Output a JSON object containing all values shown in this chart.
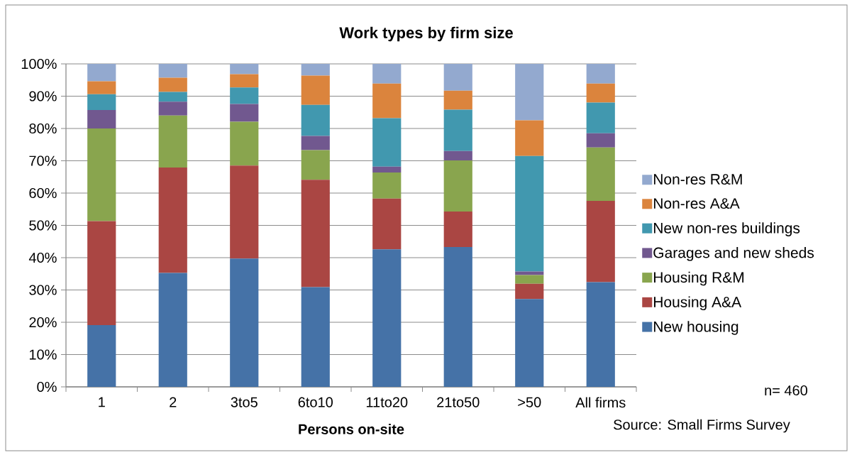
{
  "chart_data": {
    "type": "bar",
    "stacked": true,
    "title": "Work types by firm size",
    "xlabel": "Persons on-site",
    "categories": [
      "1",
      "2",
      "3to5",
      "6to10",
      "11to20",
      "21to50",
      ">50",
      "All firms"
    ],
    "series": [
      {
        "name": "New housing",
        "color": "#4572a7",
        "values": [
          19.1,
          35.3,
          39.7,
          30.9,
          42.6,
          43.3,
          27.2,
          32.4
        ]
      },
      {
        "name": "Housing A&A",
        "color": "#aa4643",
        "values": [
          32.2,
          32.6,
          28.8,
          33.2,
          15.7,
          11.0,
          4.7,
          25.2
        ]
      },
      {
        "name": "Housing R&M",
        "color": "#89a54e",
        "values": [
          28.7,
          16.1,
          13.6,
          9.2,
          8.1,
          15.8,
          2.7,
          16.5
        ]
      },
      {
        "name": "Garages and new sheds",
        "color": "#71588f",
        "values": [
          5.7,
          4.3,
          5.5,
          4.4,
          1.8,
          2.9,
          1.1,
          4.4
        ]
      },
      {
        "name": "New non-res buildings",
        "color": "#4198af",
        "values": [
          4.9,
          3.0,
          5.1,
          9.6,
          15.0,
          12.8,
          35.8,
          9.5
        ]
      },
      {
        "name": "Non-res A&A",
        "color": "#db843d",
        "values": [
          4.0,
          4.4,
          4.1,
          9.1,
          10.7,
          5.9,
          11.0,
          5.9
        ]
      },
      {
        "name": "Non-res R&M",
        "color": "#93a9cf",
        "values": [
          5.4,
          4.3,
          3.2,
          3.6,
          6.1,
          8.3,
          17.5,
          6.1
        ]
      }
    ],
    "ylim": [
      0,
      100
    ],
    "yticks": [
      {
        "value": 0,
        "label": "0%"
      },
      {
        "value": 10,
        "label": "10%"
      },
      {
        "value": 20,
        "label": "20%"
      },
      {
        "value": 30,
        "label": "30%"
      },
      {
        "value": 40,
        "label": "40%"
      },
      {
        "value": 50,
        "label": "50%"
      },
      {
        "value": 60,
        "label": "60%"
      },
      {
        "value": 70,
        "label": "70%"
      },
      {
        "value": 80,
        "label": "80%"
      },
      {
        "value": 90,
        "label": "90%"
      },
      {
        "value": 100,
        "label": "100%"
      }
    ],
    "grid": "y",
    "legend": "right",
    "annotations": [
      "n= 460",
      "Source: Small Firms Survey"
    ]
  }
}
